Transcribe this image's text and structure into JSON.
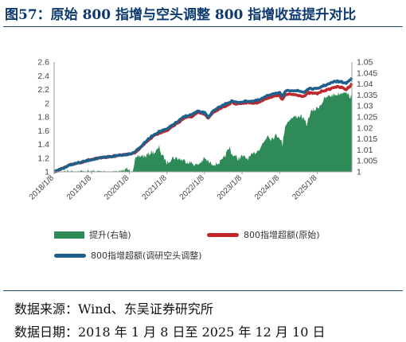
{
  "figure": {
    "title": "图57：原始 800 指增与空头调整 800 指增收益提升对比"
  },
  "source": {
    "line1": "数据来源：Wind、东吴证券研究所",
    "line2": "数据日期：2018 年 1 月 8 日至 2025 年 12 月 10 日"
  },
  "colors": {
    "area": "#2e8b57",
    "original": "#c0272d",
    "adjusted": "#1f5f8b"
  },
  "chart_data": {
    "type": "line",
    "title": "",
    "xlabel": "",
    "ylabel": "",
    "y_left": {
      "min": 1,
      "max": 2.6,
      "ticks": [
        "1",
        "1.2",
        "1.4",
        "1.6",
        "1.8",
        "2",
        "2.2",
        "2.4",
        "2.6"
      ]
    },
    "y_right": {
      "min": 1,
      "max": 1.05,
      "ticks": [
        "1",
        "1.005",
        "1.01",
        "1.015",
        "1.02",
        "1.025",
        "1.03",
        "1.035",
        "1.04",
        "1.045",
        "1.05"
      ]
    },
    "x_ticks": [
      "2018/1/8",
      "2019/1/8",
      "2020/1/8",
      "2021/1/8",
      "2022/1/8",
      "2023/1/8",
      "2024/1/8",
      "2025/1/8"
    ],
    "x_range": [
      "2018-01-08",
      "2025-12-10"
    ],
    "grid": false,
    "legend_position": "bottom",
    "series": [
      {
        "name": "提升(右轴)",
        "type": "area",
        "axis": "right",
        "points": [
          [
            "2018-01-08",
            1.0
          ],
          [
            "2019-01-08",
            1.0
          ],
          [
            "2019-06-01",
            1.0
          ],
          [
            "2019-11-20",
            1.0
          ],
          [
            "2019-12-05",
            1.0015
          ],
          [
            "2020-01-08",
            1.0005
          ],
          [
            "2020-02-10",
            1.001
          ],
          [
            "2020-03-05",
            1.0055
          ],
          [
            "2020-04-05",
            1.0065
          ],
          [
            "2020-05-10",
            1.0075
          ],
          [
            "2020-06-10",
            1.0068
          ],
          [
            "2020-07-10",
            1.008
          ],
          [
            "2020-08-10",
            1.009
          ],
          [
            "2020-09-10",
            1.0088
          ],
          [
            "2020-10-10",
            1.01
          ],
          [
            "2020-10-25",
            1.0115
          ],
          [
            "2020-11-15",
            1.008
          ],
          [
            "2020-12-15",
            1.006
          ],
          [
            "2021-01-08",
            1.004
          ],
          [
            "2021-03-01",
            1.0065
          ],
          [
            "2021-05-01",
            1.006
          ],
          [
            "2021-07-01",
            1.005
          ],
          [
            "2021-09-01",
            1.004
          ],
          [
            "2021-11-01",
            1.003
          ],
          [
            "2022-01-08",
            1.006
          ],
          [
            "2022-03-01",
            1.004
          ],
          [
            "2022-05-01",
            1.0035
          ],
          [
            "2022-07-01",
            1.005
          ],
          [
            "2022-08-15",
            1.009
          ],
          [
            "2022-09-10",
            1.011
          ],
          [
            "2022-10-01",
            1.008
          ],
          [
            "2022-12-01",
            1.006
          ],
          [
            "2023-01-08",
            1.007
          ],
          [
            "2023-03-01",
            1.006
          ],
          [
            "2023-05-01",
            1.008
          ],
          [
            "2023-07-01",
            1.011
          ],
          [
            "2023-08-15",
            1.014
          ],
          [
            "2023-09-15",
            1.017
          ],
          [
            "2023-10-15",
            1.015
          ],
          [
            "2023-12-01",
            1.0165
          ],
          [
            "2024-01-08",
            1.016
          ],
          [
            "2024-02-05",
            1.012
          ],
          [
            "2024-03-01",
            1.021
          ],
          [
            "2024-04-15",
            1.024
          ],
          [
            "2024-06-01",
            1.025
          ],
          [
            "2024-08-01",
            1.0255
          ],
          [
            "2024-09-30",
            1.0215
          ],
          [
            "2024-11-01",
            1.027
          ],
          [
            "2025-01-08",
            1.029
          ],
          [
            "2025-02-15",
            1.031
          ],
          [
            "2025-03-15",
            1.033
          ],
          [
            "2025-05-01",
            1.0345
          ],
          [
            "2025-06-15",
            1.035
          ],
          [
            "2025-08-01",
            1.0355
          ],
          [
            "2025-09-01",
            1.036
          ],
          [
            "2025-10-01",
            1.037
          ],
          [
            "2025-11-01",
            1.035
          ],
          [
            "2025-12-10",
            1.034
          ]
        ]
      },
      {
        "name": "800指增超额(原始)",
        "type": "line",
        "axis": "left",
        "points": [
          [
            "2018-01-08",
            1.0
          ],
          [
            "2018-04-01",
            1.05
          ],
          [
            "2018-07-01",
            1.11
          ],
          [
            "2018-10-01",
            1.14
          ],
          [
            "2019-01-08",
            1.18
          ],
          [
            "2019-04-01",
            1.2
          ],
          [
            "2019-07-01",
            1.22
          ],
          [
            "2019-10-01",
            1.24
          ],
          [
            "2020-01-08",
            1.26
          ],
          [
            "2020-03-01",
            1.28
          ],
          [
            "2020-05-01",
            1.36
          ],
          [
            "2020-07-01",
            1.45
          ],
          [
            "2020-09-01",
            1.52
          ],
          [
            "2020-11-01",
            1.57
          ],
          [
            "2021-01-08",
            1.6
          ],
          [
            "2021-03-01",
            1.66
          ],
          [
            "2021-05-01",
            1.72
          ],
          [
            "2021-07-01",
            1.79
          ],
          [
            "2021-09-01",
            1.8
          ],
          [
            "2021-11-01",
            1.86
          ],
          [
            "2022-01-08",
            1.84
          ],
          [
            "2022-02-15",
            1.78
          ],
          [
            "2022-04-01",
            1.86
          ],
          [
            "2022-06-01",
            1.92
          ],
          [
            "2022-08-01",
            1.96
          ],
          [
            "2022-10-01",
            2.01
          ],
          [
            "2022-11-15",
            1.99
          ],
          [
            "2023-01-08",
            2.0
          ],
          [
            "2023-03-01",
            2.01
          ],
          [
            "2023-05-01",
            2.0
          ],
          [
            "2023-07-01",
            2.02
          ],
          [
            "2023-09-01",
            2.07
          ],
          [
            "2023-11-01",
            2.1
          ],
          [
            "2024-01-08",
            2.11
          ],
          [
            "2024-02-05",
            2.05
          ],
          [
            "2024-03-01",
            2.12
          ],
          [
            "2024-05-01",
            2.13
          ],
          [
            "2024-07-01",
            2.12
          ],
          [
            "2024-09-01",
            2.1
          ],
          [
            "2024-10-15",
            2.15
          ],
          [
            "2025-01-08",
            2.14
          ],
          [
            "2025-03-01",
            2.18
          ],
          [
            "2025-05-01",
            2.2
          ],
          [
            "2025-07-01",
            2.24
          ],
          [
            "2025-09-01",
            2.23
          ],
          [
            "2025-10-15",
            2.2
          ],
          [
            "2025-11-15",
            2.24
          ],
          [
            "2025-12-10",
            2.29
          ]
        ]
      },
      {
        "name": "800指增超额(调研空头调整)",
        "type": "line",
        "axis": "left",
        "points": [
          [
            "2018-01-08",
            1.0
          ],
          [
            "2018-04-01",
            1.05
          ],
          [
            "2018-07-01",
            1.11
          ],
          [
            "2018-10-01",
            1.14
          ],
          [
            "2019-01-08",
            1.18
          ],
          [
            "2019-04-01",
            1.2
          ],
          [
            "2019-07-01",
            1.22
          ],
          [
            "2019-10-01",
            1.24
          ],
          [
            "2020-01-08",
            1.26
          ],
          [
            "2020-03-01",
            1.29
          ],
          [
            "2020-05-01",
            1.37
          ],
          [
            "2020-07-01",
            1.46
          ],
          [
            "2020-09-01",
            1.54
          ],
          [
            "2020-11-01",
            1.59
          ],
          [
            "2021-01-08",
            1.62
          ],
          [
            "2021-03-01",
            1.68
          ],
          [
            "2021-05-01",
            1.74
          ],
          [
            "2021-07-01",
            1.81
          ],
          [
            "2021-09-01",
            1.83
          ],
          [
            "2021-11-01",
            1.88
          ],
          [
            "2022-01-08",
            1.86
          ],
          [
            "2022-02-15",
            1.8
          ],
          [
            "2022-04-01",
            1.88
          ],
          [
            "2022-06-01",
            1.94
          ],
          [
            "2022-08-01",
            1.99
          ],
          [
            "2022-10-01",
            2.03
          ],
          [
            "2022-11-15",
            2.01
          ],
          [
            "2023-01-08",
            2.02
          ],
          [
            "2023-03-01",
            2.03
          ],
          [
            "2023-05-01",
            2.03
          ],
          [
            "2023-07-01",
            2.05
          ],
          [
            "2023-09-01",
            2.1
          ],
          [
            "2023-11-01",
            2.14
          ],
          [
            "2024-01-08",
            2.15
          ],
          [
            "2024-02-05",
            2.09
          ],
          [
            "2024-03-01",
            2.17
          ],
          [
            "2024-05-01",
            2.19
          ],
          [
            "2024-07-01",
            2.18
          ],
          [
            "2024-09-01",
            2.16
          ],
          [
            "2024-10-15",
            2.21
          ],
          [
            "2025-01-08",
            2.21
          ],
          [
            "2025-03-01",
            2.25
          ],
          [
            "2025-05-01",
            2.28
          ],
          [
            "2025-07-01",
            2.32
          ],
          [
            "2025-09-01",
            2.31
          ],
          [
            "2025-10-15",
            2.29
          ],
          [
            "2025-11-15",
            2.33
          ],
          [
            "2025-12-10",
            2.37
          ]
        ]
      }
    ]
  }
}
